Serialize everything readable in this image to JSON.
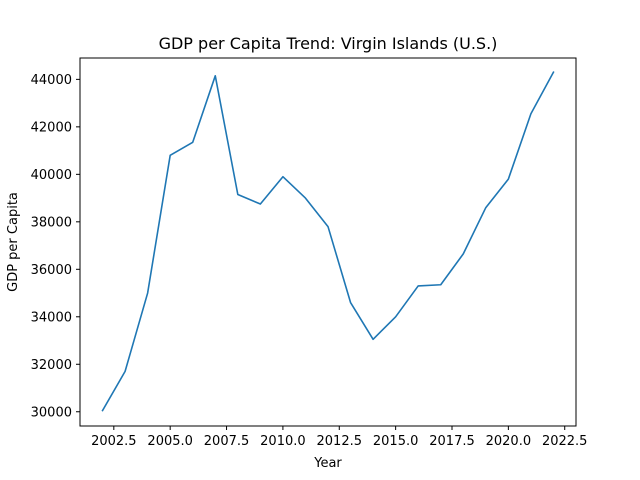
{
  "chart_data": {
    "type": "line",
    "title": "GDP per Capita Trend: Virgin Islands (U.S.)",
    "xlabel": "Year",
    "ylabel": "GDP per Capita",
    "xlim": [
      2001.0,
      2023.0
    ],
    "ylim": [
      29400,
      44900
    ],
    "xticks": [
      2002.5,
      2005.0,
      2007.5,
      2010.0,
      2012.5,
      2015.0,
      2017.5,
      2020.0,
      2022.5
    ],
    "xtick_labels": [
      "2002.5",
      "2005.0",
      "2007.5",
      "2010.0",
      "2012.5",
      "2015.0",
      "2017.5",
      "2020.0",
      "2022.5"
    ],
    "yticks": [
      30000,
      32000,
      34000,
      36000,
      38000,
      40000,
      42000,
      44000
    ],
    "ytick_labels": [
      "30000",
      "32000",
      "34000",
      "36000",
      "38000",
      "40000",
      "42000",
      "44000"
    ],
    "grid": false,
    "series": [
      {
        "color": "#1f77b4",
        "x": [
          2002,
          2003,
          2004,
          2005,
          2006,
          2007,
          2008,
          2009,
          2010,
          2011,
          2012,
          2013,
          2014,
          2015,
          2016,
          2017,
          2018,
          2019,
          2020,
          2021,
          2022
        ],
        "values": [
          30050,
          31700,
          35000,
          40800,
          41350,
          44150,
          39150,
          38750,
          39900,
          39000,
          37800,
          34600,
          33050,
          34000,
          35300,
          35350,
          36650,
          38600,
          39800,
          42550,
          44300
        ]
      }
    ]
  }
}
